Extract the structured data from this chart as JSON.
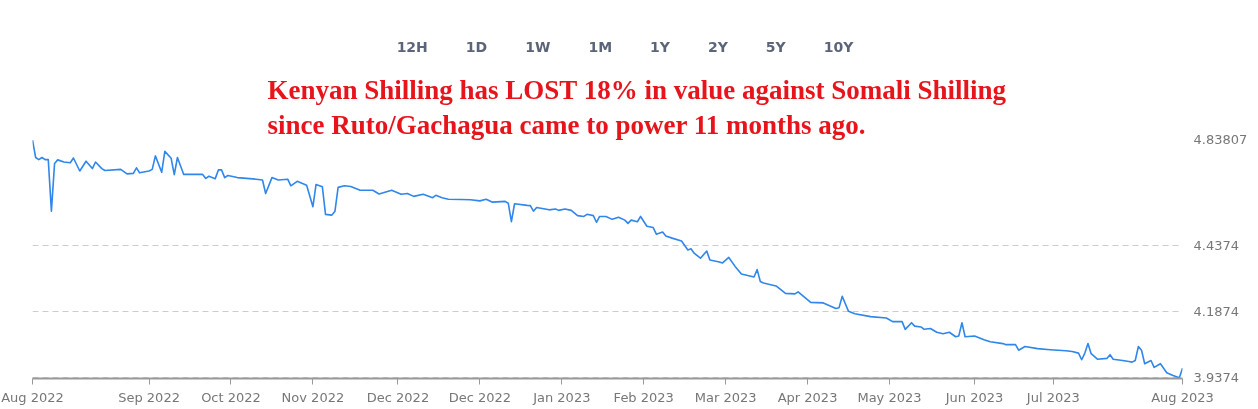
{
  "chart_data": {
    "type": "line",
    "title": "Kenyan Shilling has LOST 18% in value against Somali Shilling\nsince Ruto/Gachagua came to power 11 months ago.",
    "annotations": [
      "12H",
      "1D",
      "1W",
      "1M",
      "1Y",
      "2Y",
      "5Y",
      "10Y"
    ],
    "x": [
      "2022-08-11",
      "2022-08-12",
      "2022-08-13",
      "2022-08-14",
      "2022-08-15",
      "2022-08-16",
      "2022-08-17",
      "2022-08-18",
      "2022-08-19",
      "2022-08-21",
      "2022-08-23",
      "2022-08-24",
      "2022-08-26",
      "2022-08-28",
      "2022-08-30",
      "2022-08-31",
      "2022-09-02",
      "2022-09-03",
      "2022-09-08",
      "2022-09-10",
      "2022-09-12",
      "2022-09-13",
      "2022-09-14",
      "2022-09-17",
      "2022-09-18",
      "2022-09-19",
      "2022-09-21",
      "2022-09-22",
      "2022-09-24",
      "2022-09-25",
      "2022-09-26",
      "2022-09-28",
      "2022-10-04",
      "2022-10-05",
      "2022-10-06",
      "2022-10-08",
      "2022-10-09",
      "2022-10-10",
      "2022-10-11",
      "2022-10-12",
      "2022-10-15",
      "2022-10-21",
      "2022-10-23",
      "2022-10-24",
      "2022-10-26",
      "2022-10-28",
      "2022-10-31",
      "2022-11-01",
      "2022-11-03",
      "2022-11-06",
      "2022-11-08",
      "2022-11-09",
      "2022-11-11",
      "2022-11-12",
      "2022-11-14",
      "2022-11-15",
      "2022-11-16",
      "2022-11-18",
      "2022-11-20",
      "2022-11-23",
      "2022-11-27",
      "2022-11-29",
      "2022-12-03",
      "2022-12-06",
      "2022-12-08",
      "2022-12-10",
      "2022-12-13",
      "2022-12-16",
      "2022-12-17",
      "2022-12-19",
      "2022-12-21",
      "2022-12-25",
      "2022-12-28",
      "2022-12-31",
      "2023-01-02",
      "2023-01-04",
      "2023-01-08",
      "2023-01-09",
      "2023-01-10",
      "2023-01-11",
      "2023-01-15",
      "2023-01-16",
      "2023-01-17",
      "2023-01-18",
      "2023-01-22",
      "2023-01-24",
      "2023-01-25",
      "2023-01-27",
      "2023-01-29",
      "2023-01-31",
      "2023-02-02",
      "2023-02-03",
      "2023-02-05",
      "2023-02-06",
      "2023-02-07",
      "2023-02-09",
      "2023-02-11",
      "2023-02-13",
      "2023-02-15",
      "2023-02-16",
      "2023-02-17",
      "2023-02-19",
      "2023-02-20",
      "2023-02-22",
      "2023-02-24",
      "2023-02-25",
      "2023-02-27",
      "2023-02-28",
      "2023-03-02",
      "2023-03-05",
      "2023-03-07",
      "2023-03-08",
      "2023-03-09",
      "2023-03-11",
      "2023-03-13",
      "2023-03-14",
      "2023-03-17",
      "2023-03-18",
      "2023-03-20",
      "2023-03-22",
      "2023-03-24",
      "2023-03-27",
      "2023-03-28",
      "2023-03-29",
      "2023-03-30",
      "2023-03-31",
      "2023-04-04",
      "2023-04-07",
      "2023-04-10",
      "2023-04-11",
      "2023-04-15",
      "2023-04-19",
      "2023-04-23",
      "2023-04-24",
      "2023-04-25",
      "2023-04-27",
      "2023-04-29",
      "2023-05-04",
      "2023-05-09",
      "2023-05-11",
      "2023-05-14",
      "2023-05-15",
      "2023-05-17",
      "2023-05-18",
      "2023-05-20",
      "2023-05-21",
      "2023-05-23",
      "2023-05-25",
      "2023-05-27",
      "2023-05-29",
      "2023-05-31",
      "2023-06-01",
      "2023-06-02",
      "2023-06-03",
      "2023-06-06",
      "2023-06-09",
      "2023-06-11",
      "2023-06-15",
      "2023-06-16",
      "2023-06-19",
      "2023-06-20",
      "2023-06-22",
      "2023-06-26",
      "2023-06-30",
      "2023-07-05",
      "2023-07-07",
      "2023-07-09",
      "2023-07-10",
      "2023-07-11",
      "2023-07-12",
      "2023-07-13",
      "2023-07-15",
      "2023-07-18",
      "2023-07-19",
      "2023-07-20",
      "2023-07-23",
      "2023-07-25",
      "2023-07-26",
      "2023-07-27",
      "2023-07-28",
      "2023-07-29",
      "2023-07-30",
      "2023-08-01",
      "2023-08-02",
      "2023-08-04",
      "2023-08-06",
      "2023-08-08",
      "2023-08-10",
      "2023-08-11"
    ],
    "series": [
      {
        "color": "#2f86eb",
        "values": [
          4.836,
          4.77,
          4.762,
          4.77,
          4.762,
          4.762,
          4.567,
          4.747,
          4.761,
          4.753,
          4.75,
          4.768,
          4.719,
          4.756,
          4.728,
          4.753,
          4.728,
          4.721,
          4.725,
          4.708,
          4.71,
          4.731,
          4.712,
          4.719,
          4.725,
          4.776,
          4.714,
          4.793,
          4.767,
          4.705,
          4.77,
          4.706,
          4.706,
          4.691,
          4.699,
          4.69,
          4.723,
          4.723,
          4.694,
          4.702,
          4.694,
          4.688,
          4.685,
          4.634,
          4.694,
          4.685,
          4.688,
          4.663,
          4.68,
          4.665,
          4.584,
          4.668,
          4.659,
          4.555,
          4.552,
          4.567,
          4.657,
          4.663,
          4.66,
          4.646,
          4.646,
          4.632,
          4.646,
          4.631,
          4.634,
          4.623,
          4.631,
          4.618,
          4.627,
          4.618,
          4.612,
          4.611,
          4.61,
          4.606,
          4.612,
          4.601,
          4.604,
          4.597,
          4.527,
          4.595,
          4.589,
          4.588,
          4.567,
          4.581,
          4.572,
          4.575,
          4.57,
          4.575,
          4.57,
          4.55,
          4.547,
          4.555,
          4.55,
          4.525,
          4.547,
          4.547,
          4.536,
          4.544,
          4.533,
          4.521,
          4.533,
          4.527,
          4.547,
          4.51,
          4.505,
          4.48,
          4.488,
          4.473,
          4.465,
          4.454,
          4.42,
          4.425,
          4.408,
          4.389,
          4.416,
          4.382,
          4.375,
          4.371,
          4.392,
          4.358,
          4.329,
          4.321,
          4.318,
          4.346,
          4.301,
          4.295,
          4.284,
          4.256,
          4.254,
          4.262,
          4.222,
          4.22,
          4.199,
          4.202,
          4.245,
          4.188,
          4.179,
          4.168,
          4.163,
          4.149,
          4.149,
          4.12,
          4.145,
          4.132,
          4.129,
          4.12,
          4.123,
          4.109,
          4.103,
          4.109,
          4.092,
          4.095,
          4.145,
          4.092,
          4.095,
          4.081,
          4.073,
          4.066,
          4.062,
          4.062,
          4.041,
          4.055,
          4.047,
          4.043,
          4.039,
          4.036,
          4.03,
          4.005,
          4.03,
          4.066,
          4.028,
          4.007,
          4.01,
          4.024,
          4.007,
          4.002,
          3.998,
          3.996,
          4.002,
          4.055,
          4.041,
          3.99,
          4.002,
          3.976,
          3.99,
          3.956,
          3.945,
          3.937,
          3.973
        ]
      }
    ],
    "xlim": [
      "2022-08-11",
      "2023-08-11"
    ],
    "xticks": [
      {
        "value": "2022-08-11",
        "label": "Aug 2022"
      },
      {
        "value": "2022-09-17",
        "label": "Sep 2022"
      },
      {
        "value": "2022-10-13",
        "label": "Oct 2022"
      },
      {
        "value": "2022-11-08",
        "label": "Nov 2022"
      },
      {
        "value": "2022-12-05",
        "label": "Dec 2022"
      },
      {
        "value": "2022-12-31",
        "label": "Dec 2022"
      },
      {
        "value": "2023-01-26",
        "label": "Jan 2023"
      },
      {
        "value": "2023-02-21",
        "label": "Feb 2023"
      },
      {
        "value": "2023-03-19",
        "label": "Mar 2023"
      },
      {
        "value": "2023-04-14",
        "label": "Apr 2023"
      },
      {
        "value": "2023-05-10",
        "label": "May 2023"
      },
      {
        "value": "2023-06-06",
        "label": "Jun 2023"
      },
      {
        "value": "2023-07-01",
        "label": "Jul 2023"
      },
      {
        "value": "2023-08-11",
        "label": "Aug 2023"
      }
    ],
    "ylim": [
      3.934,
      4.83807
    ],
    "yticks": [
      4.83807,
      4.4374,
      4.1874,
      3.9374
    ],
    "grid": "y",
    "marker": "none",
    "line_style": "solid"
  }
}
